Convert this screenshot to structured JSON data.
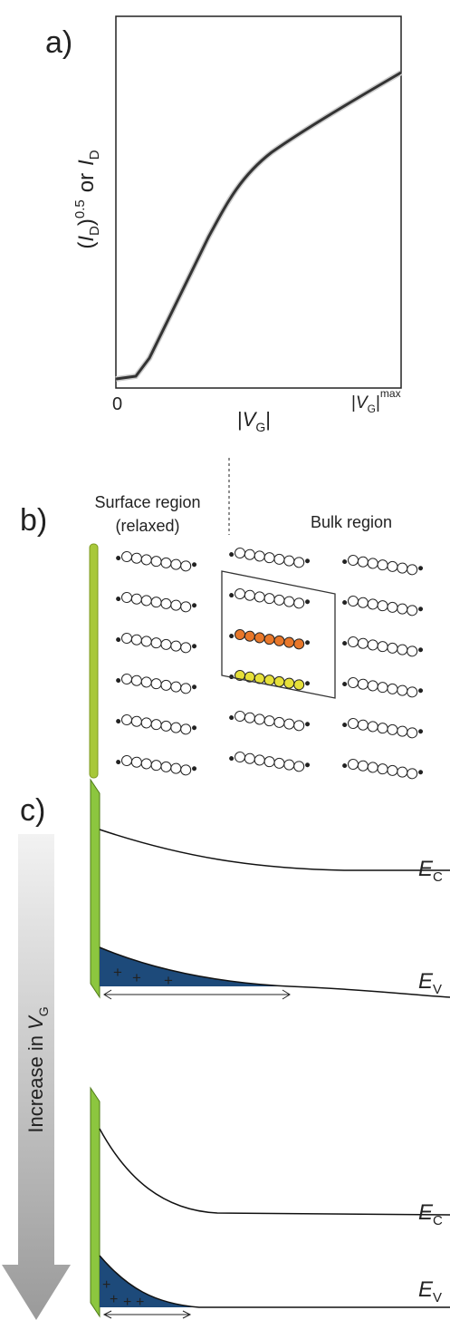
{
  "panel_a": {
    "label": "a)",
    "y_label": {
      "open": "(",
      "var": "I",
      "sub": "D",
      "close": ")",
      "sup": "0.5",
      "or": "or",
      "var2": "I",
      "sub2": "D"
    },
    "x_origin": "0",
    "x_label": {
      "bar": "|",
      "var": "V",
      "sub": "G"
    },
    "x_max": {
      "bar": "|",
      "var": "V",
      "sub": "G",
      "sup": "max"
    }
  },
  "panel_b": {
    "label": "b)",
    "surface": [
      "Surface region",
      "(relaxed)"
    ],
    "bulk": "Bulk region"
  },
  "panel_c": {
    "label": "c)",
    "arrow_text": {
      "text": "Increase in ",
      "var": "V",
      "sub": "G"
    },
    "ec": {
      "var": "E",
      "sub": "C"
    },
    "ev": {
      "var": "E",
      "sub": "V"
    },
    "plus": "+"
  }
}
